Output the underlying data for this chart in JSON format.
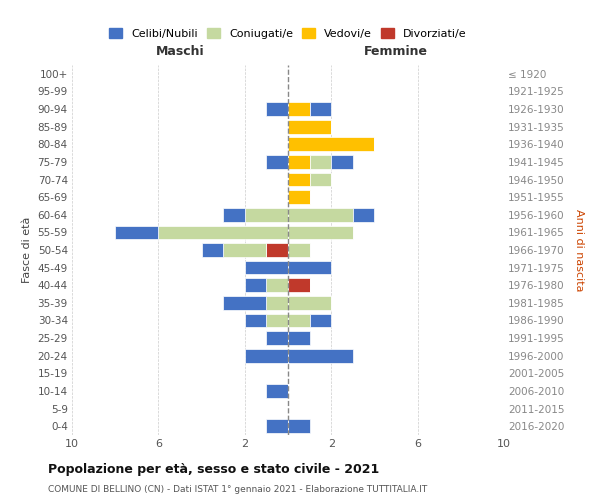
{
  "age_groups": [
    "100+",
    "95-99",
    "90-94",
    "85-89",
    "80-84",
    "75-79",
    "70-74",
    "65-69",
    "60-64",
    "55-59",
    "50-54",
    "45-49",
    "40-44",
    "35-39",
    "30-34",
    "25-29",
    "20-24",
    "15-19",
    "10-14",
    "5-9",
    "0-4"
  ],
  "birth_years": [
    "≤ 1920",
    "1921-1925",
    "1926-1930",
    "1931-1935",
    "1936-1940",
    "1941-1945",
    "1946-1950",
    "1951-1955",
    "1956-1960",
    "1961-1965",
    "1966-1970",
    "1971-1975",
    "1976-1980",
    "1981-1985",
    "1986-1990",
    "1991-1995",
    "1996-2000",
    "2001-2005",
    "2006-2010",
    "2011-2015",
    "2016-2020"
  ],
  "maschi": {
    "celibi": [
      0,
      0,
      1,
      0,
      0,
      1,
      0,
      0,
      1,
      2,
      1,
      2,
      1,
      2,
      1,
      1,
      2,
      0,
      1,
      0,
      1
    ],
    "coniugati": [
      0,
      0,
      0,
      0,
      0,
      0,
      0,
      0,
      2,
      6,
      2,
      0,
      1,
      1,
      1,
      0,
      0,
      0,
      0,
      0,
      0
    ],
    "vedovi": [
      0,
      0,
      0,
      0,
      0,
      0,
      0,
      0,
      0,
      0,
      0,
      0,
      0,
      0,
      0,
      0,
      0,
      0,
      0,
      0,
      0
    ],
    "divorziati": [
      0,
      0,
      0,
      0,
      0,
      0,
      0,
      0,
      0,
      0,
      1,
      0,
      0,
      0,
      0,
      0,
      0,
      0,
      0,
      0,
      0
    ]
  },
  "femmine": {
    "celibi": [
      0,
      0,
      1,
      0,
      0,
      1,
      0,
      0,
      1,
      0,
      0,
      2,
      0,
      0,
      1,
      1,
      3,
      0,
      0,
      0,
      1
    ],
    "coniugati": [
      0,
      0,
      0,
      0,
      0,
      1,
      1,
      0,
      3,
      3,
      1,
      0,
      0,
      2,
      1,
      0,
      0,
      0,
      0,
      0,
      0
    ],
    "vedovi": [
      0,
      0,
      1,
      2,
      4,
      1,
      1,
      1,
      0,
      0,
      0,
      0,
      0,
      0,
      0,
      0,
      0,
      0,
      0,
      0,
      0
    ],
    "divorziati": [
      0,
      0,
      0,
      0,
      0,
      0,
      0,
      0,
      0,
      0,
      0,
      0,
      1,
      0,
      0,
      0,
      0,
      0,
      0,
      0,
      0
    ]
  },
  "colors": {
    "celibi": "#4472c4",
    "coniugati": "#c5d9a0",
    "vedovi": "#ffc000",
    "divorziati": "#c0392b"
  },
  "legend_labels": [
    "Celibi/Nubili",
    "Coniugati/e",
    "Vedovi/e",
    "Divorziati/e"
  ],
  "title": "Popolazione per età, sesso e stato civile - 2021",
  "subtitle": "COMUNE DI BELLINO (CN) - Dati ISTAT 1° gennaio 2021 - Elaborazione TUTTITALIA.IT",
  "xlabel_left": "Maschi",
  "xlabel_right": "Femmine",
  "ylabel_left": "Fasce di età",
  "ylabel_right": "Anni di nascita",
  "xlim": 10,
  "bg_color": "#ffffff",
  "grid_color": "#cccccc"
}
